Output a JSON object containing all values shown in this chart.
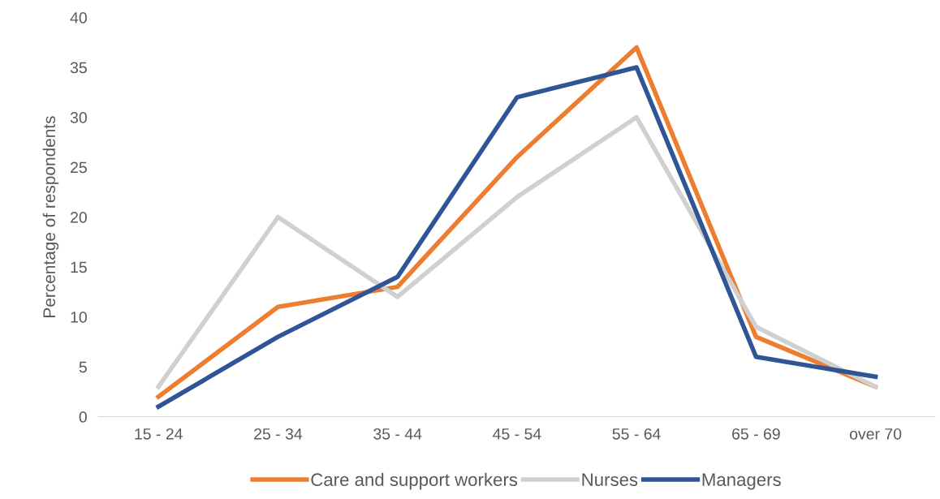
{
  "chart_data": {
    "type": "line",
    "ylabel": "Percentage of respondents",
    "categories": [
      "15 - 24",
      "25 - 34",
      "35 - 44",
      "45 - 54",
      "55 - 64",
      "65 - 69",
      "over 70"
    ],
    "series": [
      {
        "name": "Care and support workers",
        "color": "#ed7d31",
        "values": [
          2,
          11,
          13,
          26,
          37,
          8,
          3
        ]
      },
      {
        "name": "Nurses",
        "color": "#d0d0d0",
        "values": [
          3,
          20,
          12,
          22,
          30,
          9,
          3
        ]
      },
      {
        "name": "Managers",
        "color": "#2f5597",
        "values": [
          1,
          8,
          14,
          32,
          35,
          6,
          4
        ]
      }
    ],
    "ylim": [
      0,
      40
    ],
    "yticks": [
      0,
      5,
      10,
      15,
      20,
      25,
      30,
      35,
      40
    ],
    "grid": false,
    "legend": "bottom",
    "marker": "none",
    "line_style": "solid"
  }
}
